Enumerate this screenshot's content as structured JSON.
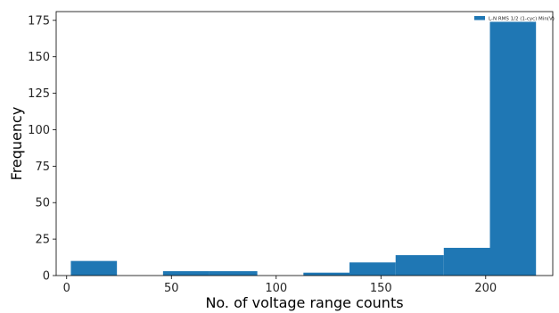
{
  "chart_data": {
    "type": "bar",
    "subtype": "histogram",
    "title": "",
    "xlabel": "No. of voltage range counts",
    "ylabel": "Frequency",
    "xlim": [
      -5,
      232
    ],
    "ylim": [
      0,
      181
    ],
    "xticks": [
      0,
      50,
      100,
      150,
      200
    ],
    "yticks": [
      0,
      25,
      50,
      75,
      100,
      125,
      150,
      175
    ],
    "bins": [
      {
        "x0": 2,
        "x1": 24,
        "value": 10
      },
      {
        "x0": 24,
        "x1": 46,
        "value": 0
      },
      {
        "x0": 46,
        "x1": 68,
        "value": 3
      },
      {
        "x0": 68,
        "x1": 91,
        "value": 3
      },
      {
        "x0": 91,
        "x1": 113,
        "value": 0
      },
      {
        "x0": 113,
        "x1": 135,
        "value": 2
      },
      {
        "x0": 135,
        "x1": 157,
        "value": 9
      },
      {
        "x0": 157,
        "x1": 180,
        "value": 14
      },
      {
        "x0": 180,
        "x1": 202,
        "value": 19
      },
      {
        "x0": 202,
        "x1": 224,
        "value": 174
      }
    ],
    "series": [
      {
        "name": "L-N RMS 1/2 (1-cyc) Min(V)",
        "color": "#1f77b4"
      }
    ],
    "legend_position": "top-right",
    "grid": false
  }
}
